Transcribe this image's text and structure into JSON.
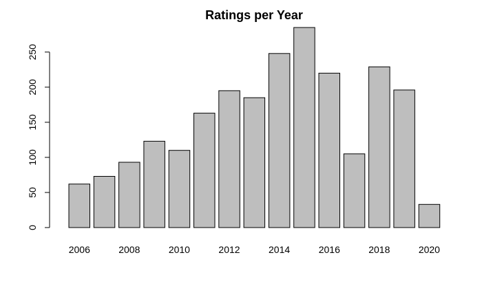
{
  "chart_data": {
    "type": "bar",
    "title": "Ratings per Year",
    "xlabel": "",
    "ylabel": "",
    "categories": [
      "2006",
      "2007",
      "2008",
      "2009",
      "2010",
      "2011",
      "2012",
      "2013",
      "2014",
      "2015",
      "2016",
      "2017",
      "2018",
      "2019",
      "2020"
    ],
    "x_tick_labels": [
      "2006",
      "2008",
      "2010",
      "2012",
      "2014",
      "2016",
      "2018",
      "2020"
    ],
    "values": [
      62,
      73,
      93,
      123,
      110,
      163,
      195,
      185,
      248,
      285,
      220,
      105,
      229,
      196,
      33
    ],
    "ylim": [
      0,
      285
    ],
    "y_ticks": [
      0,
      50,
      100,
      150,
      200,
      250
    ],
    "bar_color": "#bebebe",
    "bar_border_color": "#000000",
    "grid": false,
    "legend": "none"
  }
}
